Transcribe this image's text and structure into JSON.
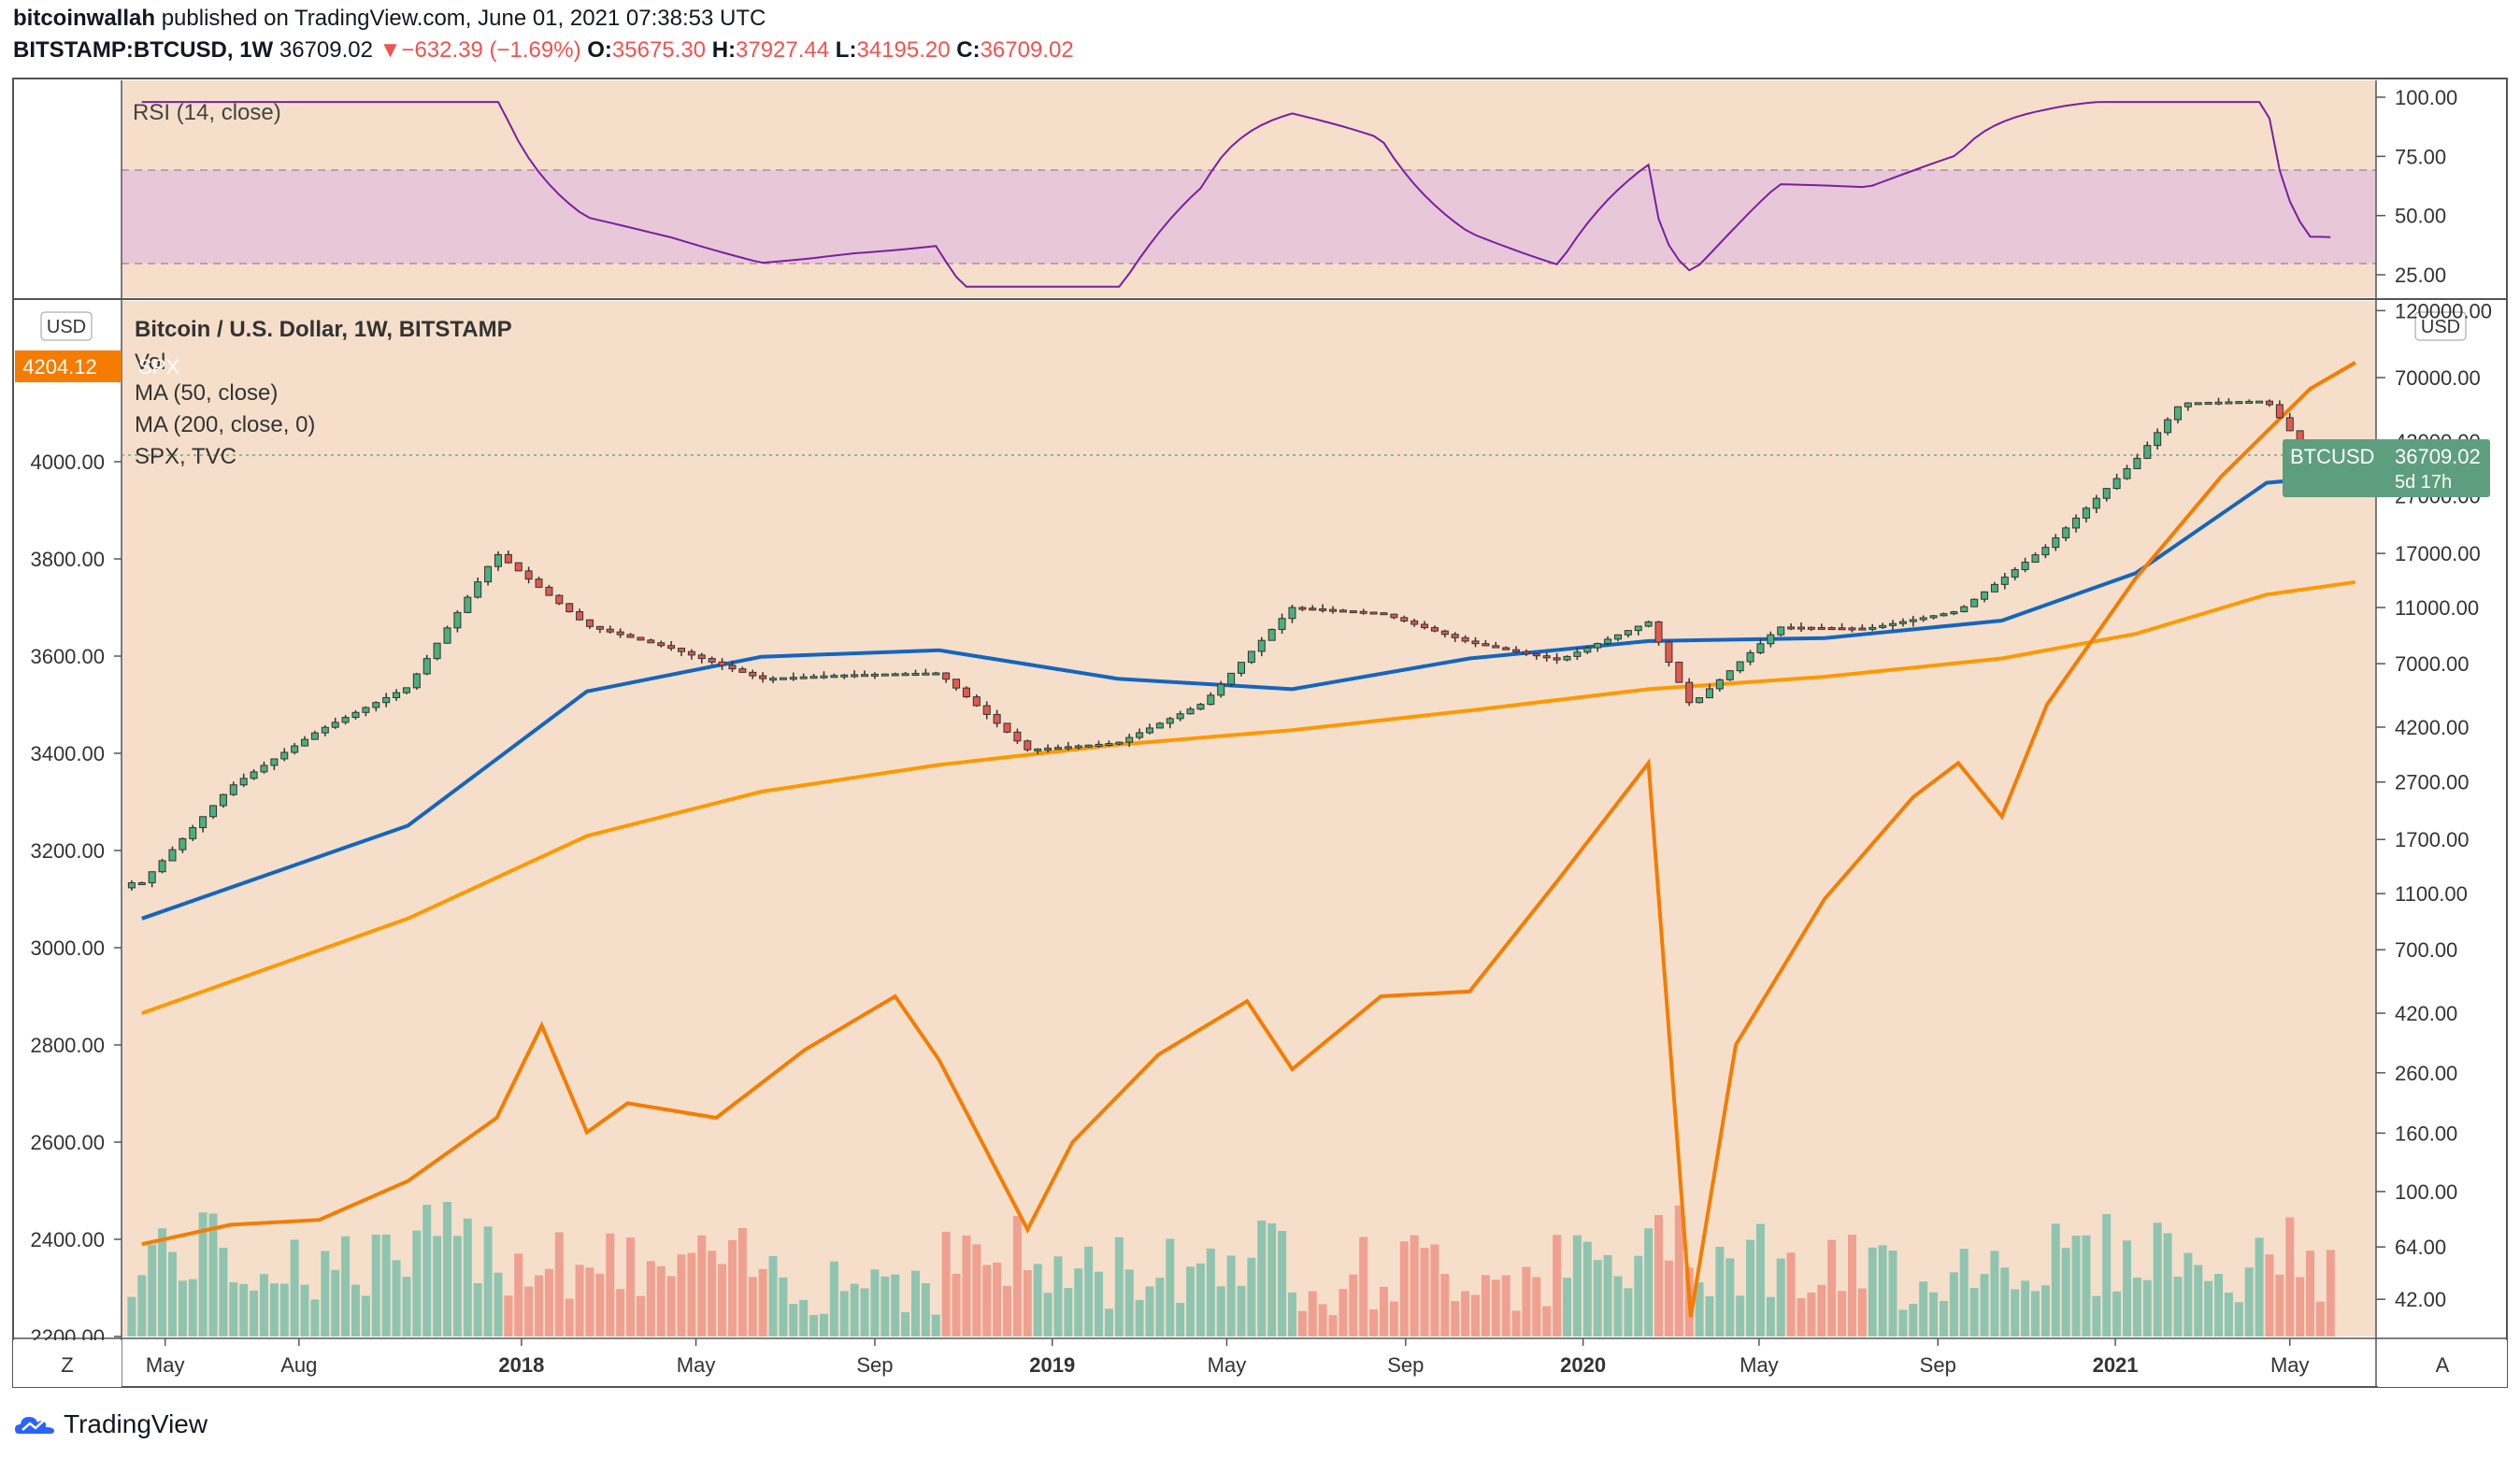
{
  "header": {
    "author": "bitcoinwallah",
    "published_text": "published on TradingView.com, June 01, 2021 07:38:53 UTC",
    "symbol": "BITSTAMP:BTCUSD, 1W",
    "last": "36709.02",
    "change": "−632.39 (−1.69%)",
    "o_label": "O:",
    "o": "35675.30",
    "h_label": "H:",
    "h": "37927.44",
    "l_label": "L:",
    "l": "34195.20",
    "c_label": "C:",
    "c": "36709.02"
  },
  "rsi_pane": {
    "label": "RSI (14, close)",
    "ticks": [
      "100.00",
      "75.00",
      "50.00",
      "25.00"
    ]
  },
  "main_pane": {
    "title": "Bitcoin / U.S. Dollar, 1W, BITSTAMP",
    "legend": [
      "Vol",
      "MA (50, close)",
      "MA (200, close, 0)",
      "SPX, TVC"
    ],
    "left_currency": "USD",
    "right_currency": "USD",
    "spx_last_label": "4204.12",
    "spx_tag_text": "SPX",
    "btc_tag_symbol": "BTCUSD",
    "btc_tag_price": "36709.02",
    "btc_tag_countdown": "5d 17h",
    "left_ticks": [
      "4000.00",
      "3800.00",
      "3600.00",
      "3400.00",
      "3200.00",
      "3000.00",
      "2800.00",
      "2600.00",
      "2400.00",
      "2200.00"
    ],
    "right_ticks": [
      "120000.00",
      "70000.00",
      "42000.00",
      "27000.00",
      "17000.00",
      "11000.00",
      "7000.00",
      "4200.00",
      "2700.00",
      "1700.00",
      "1100.00",
      "700.00",
      "420.00",
      "260.00",
      "160.00",
      "100.00",
      "64.00",
      "42.00"
    ],
    "time_ticks": [
      "May",
      "Aug",
      "2018",
      "May",
      "Sep",
      "2019",
      "May",
      "Sep",
      "2020",
      "May",
      "Sep",
      "2021",
      "May"
    ],
    "corner_left": "Z",
    "corner_right": "A"
  },
  "footer": {
    "brand": "TradingView"
  },
  "colors": {
    "spx_line": "#f57c00",
    "ma50": "#1565c0",
    "ma200": "#ff9800",
    "rsi_line": "#7b1fa2",
    "rsi_band": "#e8c8d8",
    "up": "#26a69a",
    "down": "#ef5350",
    "pane_bg": "#f5dfca",
    "price_tag": "#5d9e7e"
  },
  "chart_data": {
    "type": "line",
    "title": "Bitcoin / U.S. Dollar, 1W, BITSTAMP",
    "x_range": [
      "2017-04",
      "2021-06"
    ],
    "right_axis_log": true,
    "series": [
      {
        "name": "SPX, TVC",
        "axis": "left",
        "x": [
          "2017-04",
          "2017-06",
          "2017-08",
          "2017-10",
          "2017-12",
          "2018-01",
          "2018-02",
          "2018-03",
          "2018-05",
          "2018-07",
          "2018-09",
          "2018-10",
          "2018-12",
          "2019-01",
          "2019-03",
          "2019-05",
          "2019-06",
          "2019-08",
          "2019-10",
          "2019-12",
          "2020-02",
          "2020-03",
          "2020-04",
          "2020-06",
          "2020-08",
          "2020-09",
          "2020-10",
          "2020-11",
          "2021-01",
          "2021-03",
          "2021-05",
          "2021-06"
        ],
        "values": [
          2390,
          2430,
          2440,
          2520,
          2650,
          2840,
          2620,
          2680,
          2650,
          2790,
          2900,
          2770,
          2420,
          2600,
          2780,
          2890,
          2750,
          2900,
          2910,
          3140,
          3380,
          2240,
          2800,
          3100,
          3310,
          3380,
          3270,
          3500,
          3760,
          3970,
          4150,
          4204.12
        ]
      },
      {
        "name": "BTCUSD weekly close",
        "axis": "right",
        "x": [
          "2017-04",
          "2017-06",
          "2017-08",
          "2017-10",
          "2017-12",
          "2018-02",
          "2018-04",
          "2018-06",
          "2018-08",
          "2018-10",
          "2018-12",
          "2019-02",
          "2019-04",
          "2019-06",
          "2019-08",
          "2019-10",
          "2019-12",
          "2020-02",
          "2020-03",
          "2020-05",
          "2020-07",
          "2020-09",
          "2020-11",
          "2021-01",
          "2021-02",
          "2021-04",
          "2021-05",
          "2021-06"
        ],
        "values": [
          1200,
          2600,
          4100,
          5800,
          17000,
          9500,
          7900,
          6200,
          6400,
          6500,
          3500,
          3700,
          5100,
          11000,
          10500,
          8300,
          7200,
          9800,
          5000,
          9400,
          9300,
          10700,
          18000,
          36000,
          57000,
          58000,
          37000,
          36709.02
        ]
      },
      {
        "name": "MA (50, close)",
        "axis": "right",
        "x": [
          "2017-04",
          "2017-10",
          "2018-02",
          "2018-06",
          "2018-10",
          "2019-02",
          "2019-06",
          "2019-10",
          "2020-02",
          "2020-06",
          "2020-10",
          "2021-01",
          "2021-04",
          "2021-06"
        ],
        "values": [
          900,
          1900,
          5600,
          7400,
          7800,
          6200,
          5700,
          7300,
          8400,
          8600,
          9900,
          14500,
          30000,
          32000
        ]
      },
      {
        "name": "MA (200, close, 0)",
        "axis": "right",
        "x": [
          "2017-04",
          "2017-10",
          "2018-02",
          "2018-06",
          "2018-10",
          "2019-02",
          "2019-06",
          "2019-10",
          "2020-02",
          "2020-06",
          "2020-10",
          "2021-01",
          "2021-04",
          "2021-06"
        ],
        "values": [
          420,
          900,
          1750,
          2500,
          3100,
          3650,
          4100,
          4800,
          5700,
          6300,
          7300,
          8900,
          12200,
          13500
        ]
      }
    ]
  }
}
